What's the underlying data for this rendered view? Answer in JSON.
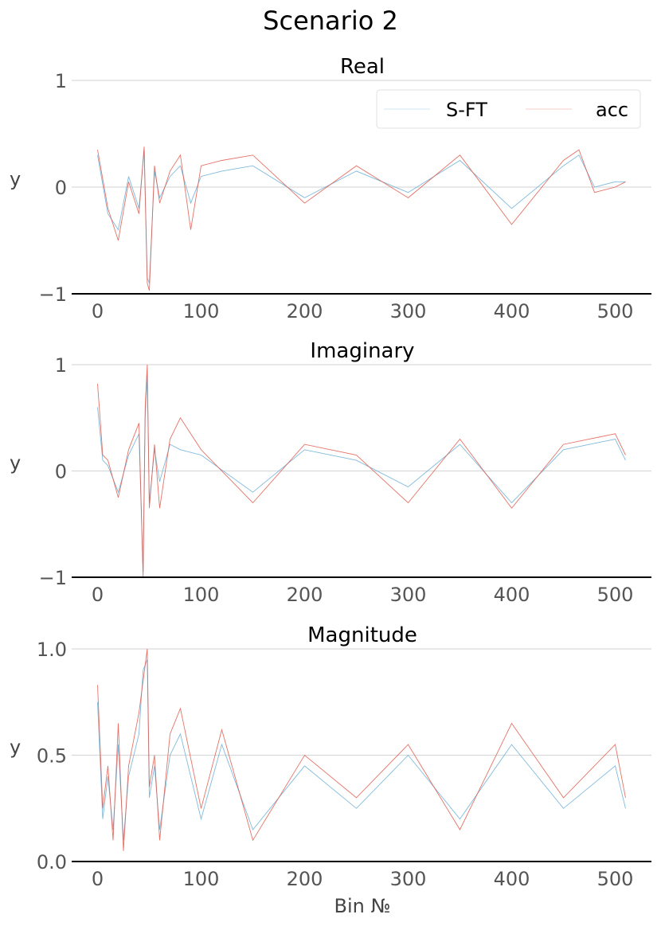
{
  "figure": {
    "title": "Scenario 2",
    "xlabel": "Bin №"
  },
  "legend": {
    "entries": [
      "S-FT",
      "acc"
    ],
    "placement": "top-right"
  },
  "colors": {
    "S-FT": "#6aaed6",
    "acc": "#e05a4e",
    "grid": "#d9d9d9",
    "axis": "#000000"
  },
  "chart_data": [
    {
      "type": "line",
      "title": "Real",
      "ylabel": "y",
      "xlim": [
        -25,
        535
      ],
      "ylim": [
        -1,
        1
      ],
      "xticks": [
        0,
        100,
        200,
        300,
        400,
        500
      ],
      "yticks": [
        -1,
        0,
        1
      ],
      "ytick_labels": [
        "−1",
        "0",
        "1"
      ],
      "series": [
        {
          "name": "S-FT",
          "x": [
            0,
            10,
            20,
            30,
            40,
            45,
            48,
            50,
            55,
            60,
            70,
            80,
            90,
            100,
            120,
            150,
            200,
            250,
            300,
            350,
            400,
            450,
            465,
            480,
            500,
            510
          ],
          "values": [
            0.3,
            -0.25,
            -0.4,
            0.1,
            -0.2,
            0.35,
            -0.85,
            -0.9,
            0.15,
            -0.1,
            0.1,
            0.2,
            -0.15,
            0.1,
            0.15,
            0.2,
            -0.1,
            0.15,
            -0.05,
            0.25,
            -0.2,
            0.2,
            0.3,
            0.0,
            0.05,
            0.05
          ]
        },
        {
          "name": "acc",
          "x": [
            0,
            10,
            20,
            30,
            40,
            45,
            48,
            50,
            55,
            60,
            70,
            80,
            90,
            100,
            120,
            150,
            200,
            250,
            300,
            350,
            400,
            450,
            465,
            480,
            500,
            510
          ],
          "values": [
            0.35,
            -0.2,
            -0.5,
            0.05,
            -0.25,
            0.38,
            -0.9,
            -0.97,
            0.2,
            -0.15,
            0.15,
            0.3,
            -0.4,
            0.2,
            0.25,
            0.3,
            -0.15,
            0.2,
            -0.1,
            0.3,
            -0.35,
            0.25,
            0.35,
            -0.05,
            0.0,
            0.05
          ]
        }
      ]
    },
    {
      "type": "line",
      "title": "Imaginary",
      "ylabel": "y",
      "xlim": [
        -25,
        535
      ],
      "ylim": [
        -1,
        1
      ],
      "xticks": [
        0,
        100,
        200,
        300,
        400,
        500
      ],
      "yticks": [
        -1,
        0,
        1
      ],
      "ytick_labels": [
        "−1",
        "0",
        "1"
      ],
      "series": [
        {
          "name": "S-FT",
          "x": [
            0,
            5,
            10,
            20,
            30,
            40,
            44,
            46,
            48,
            50,
            55,
            60,
            70,
            80,
            100,
            150,
            200,
            250,
            300,
            350,
            400,
            450,
            500,
            510
          ],
          "values": [
            0.6,
            0.1,
            0.05,
            -0.2,
            0.15,
            0.35,
            -0.95,
            0.5,
            0.9,
            -0.3,
            0.2,
            -0.1,
            0.25,
            0.2,
            0.15,
            -0.2,
            0.2,
            0.1,
            -0.15,
            0.25,
            -0.3,
            0.2,
            0.3,
            0.1
          ]
        },
        {
          "name": "acc",
          "x": [
            0,
            5,
            10,
            20,
            30,
            40,
            44,
            46,
            48,
            50,
            55,
            60,
            70,
            80,
            100,
            150,
            200,
            250,
            300,
            350,
            400,
            450,
            500,
            510
          ],
          "values": [
            0.82,
            0.15,
            0.1,
            -0.25,
            0.2,
            0.45,
            -1.0,
            0.6,
            1.0,
            -0.35,
            0.25,
            -0.35,
            0.3,
            0.5,
            0.2,
            -0.3,
            0.25,
            0.15,
            -0.3,
            0.3,
            -0.35,
            0.25,
            0.35,
            0.15
          ]
        }
      ]
    },
    {
      "type": "line",
      "title": "Magnitude",
      "ylabel": "y",
      "xlabel": "Bin №",
      "xlim": [
        -25,
        535
      ],
      "ylim": [
        0,
        1
      ],
      "xticks": [
        0,
        100,
        200,
        300,
        400,
        500
      ],
      "yticks": [
        0,
        0.5,
        1
      ],
      "ytick_labels": [
        "0.0",
        "0.5",
        "1.0"
      ],
      "series": [
        {
          "name": "S-FT",
          "x": [
            0,
            5,
            10,
            15,
            20,
            25,
            30,
            40,
            44,
            48,
            50,
            55,
            60,
            70,
            80,
            100,
            120,
            150,
            200,
            250,
            300,
            350,
            400,
            450,
            500,
            510
          ],
          "values": [
            0.75,
            0.2,
            0.4,
            0.15,
            0.55,
            0.1,
            0.4,
            0.6,
            0.9,
            0.95,
            0.3,
            0.45,
            0.15,
            0.5,
            0.6,
            0.2,
            0.55,
            0.15,
            0.45,
            0.25,
            0.5,
            0.2,
            0.55,
            0.25,
            0.45,
            0.25
          ]
        },
        {
          "name": "acc",
          "x": [
            0,
            5,
            10,
            15,
            20,
            25,
            30,
            40,
            44,
            48,
            50,
            55,
            60,
            70,
            80,
            100,
            120,
            150,
            200,
            250,
            300,
            350,
            400,
            450,
            500,
            510
          ],
          "values": [
            0.83,
            0.25,
            0.45,
            0.1,
            0.65,
            0.05,
            0.45,
            0.7,
            0.85,
            1.0,
            0.35,
            0.5,
            0.1,
            0.6,
            0.72,
            0.25,
            0.62,
            0.1,
            0.5,
            0.3,
            0.55,
            0.15,
            0.65,
            0.3,
            0.55,
            0.3
          ]
        }
      ]
    }
  ]
}
